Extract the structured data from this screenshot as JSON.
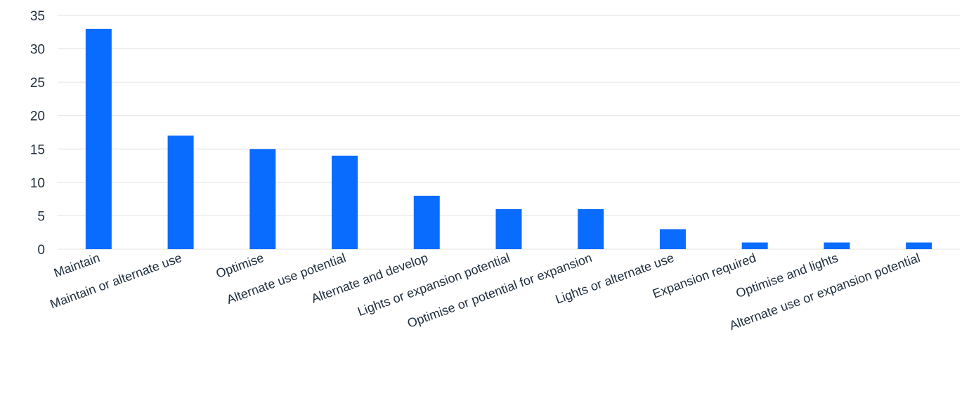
{
  "chart_data": {
    "type": "bar",
    "categories": [
      "Maintain",
      "Maintain or alternate use",
      "Optimise",
      "Alternate use potential",
      "Alternate and develop",
      "Lights or expansion potential",
      "Optimise or potential for expansion",
      "Lights or alternate use",
      "Expansion required",
      "Optimise and lights",
      "Alternate use or expansion potential"
    ],
    "values": [
      33,
      17,
      15,
      14,
      8,
      6,
      6,
      3,
      1,
      1,
      1
    ],
    "ylim": [
      0,
      35
    ],
    "yticks": [
      "0",
      "5",
      "10",
      "15",
      "20",
      "25",
      "30",
      "35"
    ],
    "grid": true,
    "bar_color": "#0a6cff",
    "title": "",
    "xlabel": "",
    "ylabel": ""
  }
}
